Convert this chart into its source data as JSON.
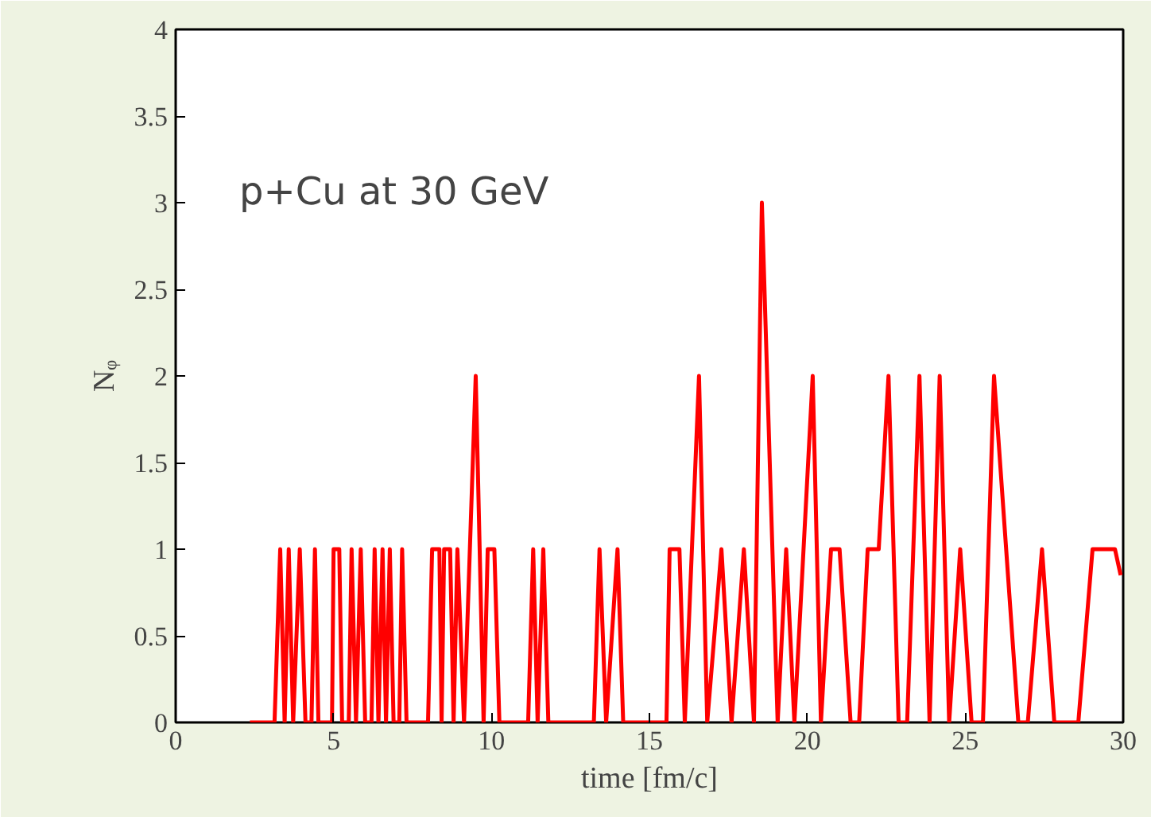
{
  "chart_data": {
    "type": "line",
    "xlabel": "time [fm/c]",
    "ylabel": "Nᵩ",
    "annotations": [
      "p+Cu at 30 GeV"
    ],
    "xlim": [
      0,
      30
    ],
    "ylim": [
      0,
      4
    ],
    "xticks": [
      0,
      5,
      10,
      15,
      20,
      25,
      30
    ],
    "yticks": [
      0,
      0.5,
      1,
      1.5,
      2,
      2.5,
      3,
      3.5,
      4
    ],
    "marker": "none",
    "line_style": "solid",
    "series": [
      {
        "color": "#ff0000",
        "x": [
          2.35,
          3.13,
          3.31,
          3.45,
          3.58,
          3.72,
          3.93,
          4.11,
          4.3,
          4.41,
          4.52,
          4.95,
          5.0,
          5.18,
          5.27,
          5.48,
          5.57,
          5.71,
          5.86,
          6.0,
          6.2,
          6.3,
          6.42,
          6.55,
          6.66,
          6.78,
          6.9,
          7.08,
          7.17,
          7.31,
          7.99,
          8.12,
          8.35,
          8.42,
          8.5,
          8.69,
          8.8,
          8.92,
          9.13,
          9.5,
          9.75,
          9.88,
          10.09,
          10.25,
          11.16,
          11.32,
          11.46,
          11.64,
          11.8,
          13.24,
          13.42,
          13.63,
          13.99,
          14.17,
          15.54,
          15.64,
          15.95,
          16.12,
          16.57,
          16.83,
          17.28,
          17.6,
          17.99,
          18.31,
          18.56,
          19.06,
          19.33,
          19.59,
          20.17,
          20.43,
          20.75,
          21.02,
          21.37,
          21.64,
          21.91,
          22.26,
          22.57,
          22.89,
          23.16,
          23.55,
          23.87,
          24.19,
          24.49,
          24.84,
          25.2,
          25.56,
          25.91,
          26.68,
          26.98,
          27.43,
          27.82,
          28.58,
          29.03,
          29.74,
          29.92
        ],
        "values": [
          0,
          0,
          1,
          0,
          1,
          0,
          1,
          0,
          0,
          1,
          0,
          0,
          1,
          1,
          0,
          0,
          1,
          0,
          1,
          0,
          0,
          1,
          0,
          1,
          0,
          1,
          0,
          0,
          1,
          0,
          0,
          1,
          1,
          0,
          1,
          1,
          0,
          1,
          0,
          2,
          0,
          1,
          1,
          0,
          0,
          1,
          0,
          1,
          0,
          0,
          1,
          0,
          1,
          0,
          0,
          1,
          1,
          0,
          2,
          0,
          1,
          0,
          1,
          0,
          3,
          0,
          1,
          0,
          2,
          0,
          1,
          1,
          0,
          0,
          1,
          1,
          2,
          0,
          0,
          2,
          0,
          2,
          0,
          1,
          0,
          0,
          2,
          0,
          0,
          1,
          0,
          0,
          1,
          1,
          0.85
        ]
      }
    ]
  }
}
